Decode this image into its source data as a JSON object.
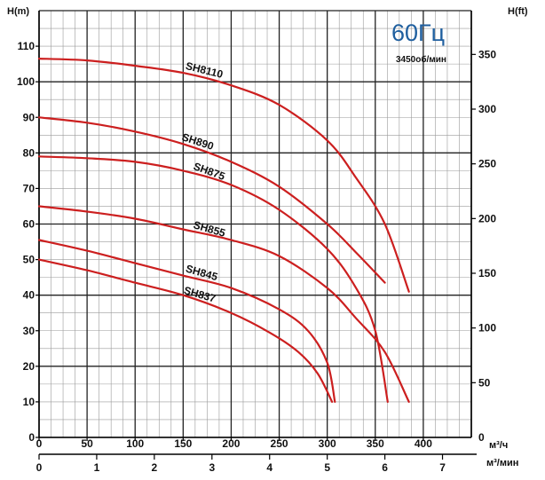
{
  "chart_data": {
    "type": "line",
    "frequency_label": "60Гц",
    "speed_label": "3450об/мин",
    "y_left_label": "H(m)",
    "y_right_label": "H(ft)",
    "x_unit_label": "м³/ч",
    "x2_unit_label": "м³/мин",
    "xlim": [
      0,
      450
    ],
    "ylim": [
      0,
      120
    ],
    "x2lim": [
      0,
      7.5
    ],
    "y2lim": [
      0,
      390
    ],
    "x_ticks": [
      "0",
      "50",
      "100",
      "150",
      "200",
      "250",
      "300",
      "350",
      "400"
    ],
    "x2_ticks": [
      "0",
      "1",
      "2",
      "3",
      "4",
      "5",
      "6",
      "7"
    ],
    "y_left_ticks": [
      "0",
      "10",
      "20",
      "30",
      "40",
      "50",
      "60",
      "70",
      "80",
      "90",
      "100",
      "110"
    ],
    "y_right_ticks": [
      "50",
      "100",
      "150",
      "200",
      "250",
      "300",
      "350"
    ],
    "grid": true,
    "line_color": "#cc1f1f",
    "series": [
      {
        "name": "SH8110",
        "x": [
          0,
          50,
          100,
          150,
          200,
          250,
          300,
          330,
          360,
          385
        ],
        "y": [
          106.5,
          106,
          104.5,
          102.5,
          99,
          93.5,
          83.5,
          73,
          60,
          41
        ]
      },
      {
        "name": "SH890",
        "x": [
          0,
          50,
          100,
          150,
          200,
          250,
          300,
          330,
          360
        ],
        "y": [
          90,
          88.5,
          86,
          82.5,
          77.5,
          70.5,
          60,
          52,
          43.5
        ]
      },
      {
        "name": "SH875",
        "x": [
          0,
          50,
          100,
          150,
          200,
          250,
          300,
          330,
          350,
          363
        ],
        "y": [
          79,
          78.5,
          77.5,
          75,
          71,
          64,
          53,
          42,
          30,
          10
        ]
      },
      {
        "name": "SH855",
        "x": [
          0,
          50,
          100,
          150,
          200,
          250,
          300,
          330,
          360,
          385
        ],
        "y": [
          65,
          63.5,
          61.5,
          58.5,
          55.5,
          51,
          42,
          33.5,
          24,
          10
        ]
      },
      {
        "name": "SH845",
        "x": [
          0,
          50,
          100,
          150,
          200,
          250,
          280,
          300,
          308
        ],
        "y": [
          55.5,
          52.5,
          49,
          45.5,
          42,
          36,
          30,
          21,
          10
        ]
      },
      {
        "name": "SH837",
        "x": [
          0,
          50,
          100,
          150,
          200,
          240,
          270,
          290,
          305
        ],
        "y": [
          50,
          47,
          43.5,
          40,
          35,
          29.5,
          24,
          18,
          10
        ]
      }
    ]
  }
}
